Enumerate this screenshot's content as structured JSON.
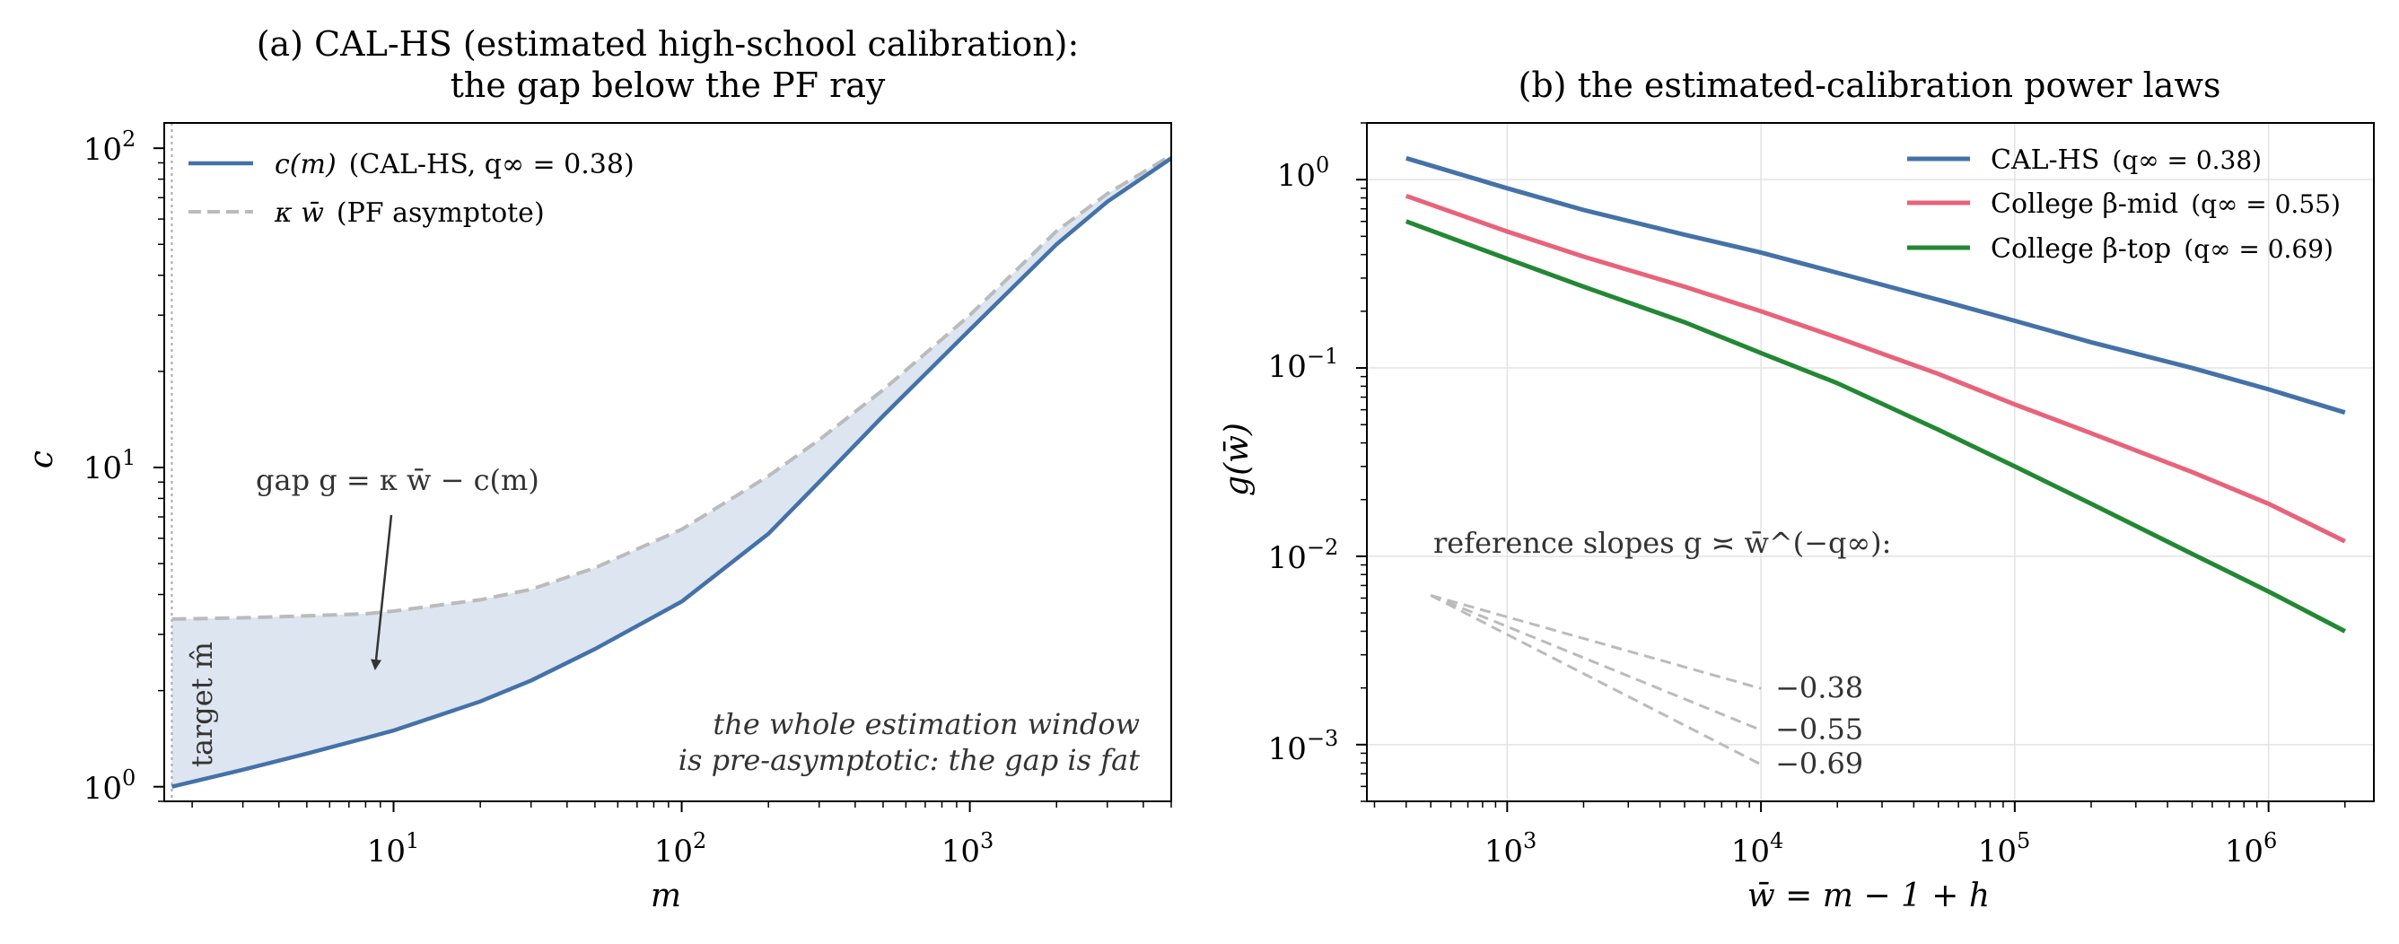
{
  "chart_data": [
    {
      "type": "line",
      "title": "(a)  CAL-HS (estimated high-school calibration):",
      "title_line2": "the gap below the PF ray",
      "xlabel": "m",
      "ylabel": "c",
      "xscale": "log",
      "yscale": "log",
      "xlim": [
        1.6,
        5000
      ],
      "ylim": [
        0.9,
        120
      ],
      "grid": false,
      "legend_position": "upper-left",
      "x_tick_labels": [
        "10",
        "10",
        "10"
      ],
      "x_tick_exponents": [
        "1",
        "2",
        "3"
      ],
      "y_tick_labels": [
        "10",
        "10",
        "10"
      ],
      "y_tick_exponents": [
        "0",
        "1",
        "2"
      ],
      "series": [
        {
          "name": "c(m)  (CAL-HS, q∞ = 0.38)",
          "legend_main": "c(m)",
          "legend_rest": "(CAL-HS, q∞ = 0.38)",
          "color": "#4472a8",
          "style": "solid",
          "x": [
            1.7,
            3,
            5,
            8,
            10,
            20,
            30,
            50,
            100,
            200,
            300,
            500,
            1000,
            2000,
            3000,
            5000
          ],
          "y": [
            1.0,
            1.13,
            1.27,
            1.42,
            1.5,
            1.85,
            2.15,
            2.7,
            3.8,
            6.2,
            9.0,
            14.5,
            27,
            50,
            68,
            93
          ]
        },
        {
          "name": "κ w̄  (PF asymptote)",
          "legend_main": "κ w̄",
          "legend_rest": "(PF asymptote)",
          "color": "#bbbbbb",
          "style": "dashed",
          "x": [
            1.7,
            3,
            5,
            8,
            10,
            20,
            30,
            50,
            100,
            200,
            300,
            500,
            1000,
            2000,
            3000,
            5000
          ],
          "y": [
            3.35,
            3.38,
            3.43,
            3.48,
            3.55,
            3.85,
            4.15,
            4.85,
            6.4,
            9.4,
            12.2,
            17.5,
            30,
            55,
            72,
            95
          ]
        }
      ],
      "fill_color": "#dde5f0",
      "vline_x": 1.7,
      "vline_label": "target m̂",
      "annotations": {
        "gap_text": "gap g = κ w̄ − c(m)",
        "note_line1": "the whole estimation window",
        "note_line2": "is pre-asymptotic: the gap is fat"
      }
    },
    {
      "type": "line",
      "title": "(b)  the estimated-calibration power laws",
      "xlabel": "w̄ = m − 1 + h",
      "ylabel": "g(w̄)",
      "xscale": "log",
      "yscale": "log",
      "xlim": [
        280,
        2600000
      ],
      "ylim": [
        0.0005,
        2
      ],
      "grid": true,
      "legend_position": "upper-right",
      "x_tick_labels": [
        "10",
        "10",
        "10",
        "10"
      ],
      "x_tick_exponents": [
        "3",
        "4",
        "5",
        "6"
      ],
      "y_tick_labels": [
        "10",
        "10",
        "10",
        "10"
      ],
      "y_tick_exponents": [
        "0",
        "−1",
        "−2",
        "−3"
      ],
      "series": [
        {
          "name": "CAL-HS  (q∞ = 0.38)",
          "legend_main": "CAL-HS",
          "legend_rest": "(q∞ = 0.38)",
          "color": "#4472a8",
          "x": [
            400,
            1000,
            2000,
            5000,
            10000,
            20000,
            50000,
            100000,
            200000,
            500000,
            1000000,
            2000000
          ],
          "y": [
            1.3,
            0.9,
            0.69,
            0.51,
            0.41,
            0.32,
            0.23,
            0.178,
            0.137,
            0.1,
            0.077,
            0.058
          ]
        },
        {
          "name": "College β-mid  (q∞ = 0.55)",
          "legend_main": "College β-mid",
          "legend_rest": "(q∞ = 0.55)",
          "color": "#e8637a",
          "x": [
            400,
            1000,
            2000,
            5000,
            10000,
            20000,
            50000,
            100000,
            200000,
            500000,
            1000000,
            2000000
          ],
          "y": [
            0.82,
            0.53,
            0.39,
            0.27,
            0.2,
            0.145,
            0.093,
            0.064,
            0.045,
            0.028,
            0.019,
            0.012
          ]
        },
        {
          "name": "College β-top  (q∞ = 0.69)",
          "legend_main": "College β-top",
          "legend_rest": "(q∞ = 0.69)",
          "color": "#228833",
          "x": [
            400,
            1000,
            2000,
            5000,
            10000,
            20000,
            50000,
            100000,
            200000,
            500000,
            1000000,
            2000000
          ],
          "y": [
            0.6,
            0.38,
            0.27,
            0.175,
            0.12,
            0.083,
            0.047,
            0.03,
            0.019,
            0.0103,
            0.0065,
            0.004
          ]
        }
      ],
      "reference_slopes": {
        "label": "reference slopes  g ≍ w̄^(−q∞):",
        "start": [
          500,
          0.0062
        ],
        "end_x": 10000,
        "color": "#bbbbbb",
        "slopes": [
          -0.38,
          -0.55,
          -0.69
        ],
        "slope_labels": [
          "−0.38",
          "−0.55",
          "−0.69"
        ]
      }
    }
  ]
}
